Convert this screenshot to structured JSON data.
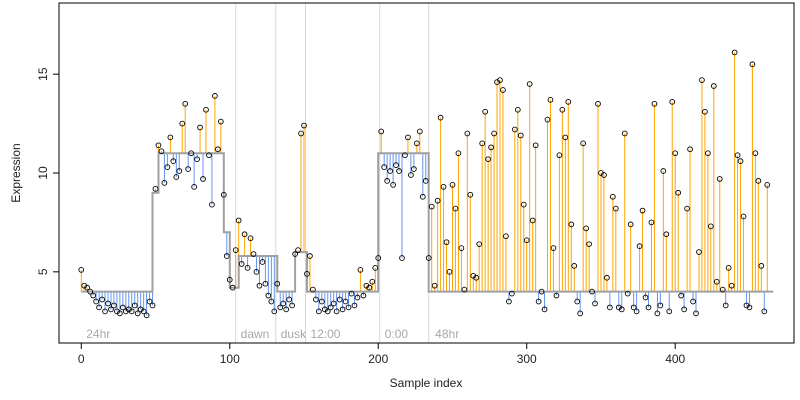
{
  "chart_data": {
    "type": "scatter",
    "title": "",
    "xlabel": "Sample index",
    "ylabel": "Expression",
    "xlim": [
      -15,
      480
    ],
    "ylim": [
      1.4,
      18.6
    ],
    "x_ticks": [
      0,
      100,
      200,
      300,
      400
    ],
    "y_ticks": [
      5,
      10,
      15
    ],
    "grid": false,
    "legend": "none",
    "colors": {
      "above_fit": "#FFA500",
      "below_fit": "#6495ED",
      "fit_line": "#A0A0A0",
      "point_stroke": "#000000",
      "separator": "#D8D8D8"
    },
    "separators": [
      104,
      131,
      151,
      201,
      234
    ],
    "annotations": [
      {
        "x": 2,
        "label": "24hr"
      },
      {
        "x": 106,
        "label": "dawn"
      },
      {
        "x": 133,
        "label": "dusk"
      },
      {
        "x": 153,
        "label": "12:00"
      },
      {
        "x": 203,
        "label": "0:00"
      },
      {
        "x": 237,
        "label": "48hr"
      }
    ],
    "fitted_levels": [
      {
        "x_start": 0,
        "x_end": 48,
        "value": 4.0
      },
      {
        "x_start": 48,
        "x_end": 52,
        "value": 9.0
      },
      {
        "x_start": 52,
        "x_end": 96,
        "value": 11.0
      },
      {
        "x_start": 96,
        "x_end": 100,
        "value": 7.0
      },
      {
        "x_start": 100,
        "x_end": 106,
        "value": 4.2
      },
      {
        "x_start": 106,
        "x_end": 132,
        "value": 5.8
      },
      {
        "x_start": 132,
        "x_end": 144,
        "value": 4.0
      },
      {
        "x_start": 144,
        "x_end": 152,
        "value": 6.0
      },
      {
        "x_start": 152,
        "x_end": 200,
        "value": 4.0
      },
      {
        "x_start": 200,
        "x_end": 234,
        "value": 11.0
      },
      {
        "x_start": 234,
        "x_end": 466,
        "value": 4.0
      }
    ],
    "points": [
      [
        0,
        5.1
      ],
      [
        2,
        4.3
      ],
      [
        4,
        4.2
      ],
      [
        6,
        4.0
      ],
      [
        8,
        3.8
      ],
      [
        10,
        3.5
      ],
      [
        12,
        3.2
      ],
      [
        14,
        3.6
      ],
      [
        16,
        3.0
      ],
      [
        18,
        3.4
      ],
      [
        20,
        3.1
      ],
      [
        22,
        3.3
      ],
      [
        24,
        3.0
      ],
      [
        26,
        2.9
      ],
      [
        28,
        3.2
      ],
      [
        30,
        3.0
      ],
      [
        32,
        3.1
      ],
      [
        34,
        3.0
      ],
      [
        36,
        3.3
      ],
      [
        38,
        2.9
      ],
      [
        40,
        3.1
      ],
      [
        42,
        3.0
      ],
      [
        44,
        2.8
      ],
      [
        46,
        3.5
      ],
      [
        48,
        3.3
      ],
      [
        50,
        9.2
      ],
      [
        52,
        11.4
      ],
      [
        54,
        11.1
      ],
      [
        56,
        9.5
      ],
      [
        58,
        10.3
      ],
      [
        60,
        11.8
      ],
      [
        62,
        10.6
      ],
      [
        64,
        9.8
      ],
      [
        66,
        10.1
      ],
      [
        68,
        12.5
      ],
      [
        70,
        13.5
      ],
      [
        72,
        10.2
      ],
      [
        74,
        11.0
      ],
      [
        76,
        9.3
      ],
      [
        78,
        10.7
      ],
      [
        80,
        12.3
      ],
      [
        82,
        9.7
      ],
      [
        84,
        13.2
      ],
      [
        86,
        10.9
      ],
      [
        88,
        8.4
      ],
      [
        90,
        13.9
      ],
      [
        92,
        11.2
      ],
      [
        94,
        12.6
      ],
      [
        96,
        8.9
      ],
      [
        98,
        5.8
      ],
      [
        100,
        4.6
      ],
      [
        102,
        4.2
      ],
      [
        104,
        6.1
      ],
      [
        106,
        7.6
      ],
      [
        108,
        5.4
      ],
      [
        110,
        6.9
      ],
      [
        112,
        5.2
      ],
      [
        114,
        6.7
      ],
      [
        116,
        5.9
      ],
      [
        118,
        5.0
      ],
      [
        120,
        4.3
      ],
      [
        122,
        5.5
      ],
      [
        124,
        4.4
      ],
      [
        126,
        3.8
      ],
      [
        128,
        3.5
      ],
      [
        130,
        3.0
      ],
      [
        132,
        4.4
      ],
      [
        134,
        3.2
      ],
      [
        136,
        3.4
      ],
      [
        138,
        3.1
      ],
      [
        140,
        3.6
      ],
      [
        142,
        3.3
      ],
      [
        144,
        5.9
      ],
      [
        146,
        6.1
      ],
      [
        148,
        12.0
      ],
      [
        150,
        12.4
      ],
      [
        152,
        4.9
      ],
      [
        154,
        5.8
      ],
      [
        156,
        4.1
      ],
      [
        158,
        3.6
      ],
      [
        160,
        3.0
      ],
      [
        162,
        3.5
      ],
      [
        164,
        3.1
      ],
      [
        166,
        3.0
      ],
      [
        168,
        3.2
      ],
      [
        170,
        3.4
      ],
      [
        172,
        3.0
      ],
      [
        174,
        3.6
      ],
      [
        176,
        3.1
      ],
      [
        178,
        3.5
      ],
      [
        180,
        3.2
      ],
      [
        182,
        3.9
      ],
      [
        184,
        3.3
      ],
      [
        186,
        3.7
      ],
      [
        188,
        5.1
      ],
      [
        190,
        3.8
      ],
      [
        192,
        4.3
      ],
      [
        194,
        4.2
      ],
      [
        196,
        4.5
      ],
      [
        198,
        5.2
      ],
      [
        200,
        5.7
      ],
      [
        202,
        12.1
      ],
      [
        204,
        10.3
      ],
      [
        206,
        9.6
      ],
      [
        208,
        10.1
      ],
      [
        210,
        9.4
      ],
      [
        212,
        10.4
      ],
      [
        214,
        10.1
      ],
      [
        216,
        5.7
      ],
      [
        218,
        10.9
      ],
      [
        220,
        11.8
      ],
      [
        222,
        9.9
      ],
      [
        224,
        10.2
      ],
      [
        226,
        11.5
      ],
      [
        228,
        12.1
      ],
      [
        230,
        8.8
      ],
      [
        232,
        9.6
      ],
      [
        234,
        5.7
      ],
      [
        236,
        8.3
      ],
      [
        238,
        4.3
      ],
      [
        240,
        8.6
      ],
      [
        242,
        12.8
      ],
      [
        244,
        9.3
      ],
      [
        246,
        6.5
      ],
      [
        248,
        5.0
      ],
      [
        250,
        9.4
      ],
      [
        252,
        8.2
      ],
      [
        254,
        11.0
      ],
      [
        256,
        6.2
      ],
      [
        258,
        4.1
      ],
      [
        260,
        12.0
      ],
      [
        262,
        8.9
      ],
      [
        264,
        4.8
      ],
      [
        266,
        4.7
      ],
      [
        268,
        6.4
      ],
      [
        270,
        11.5
      ],
      [
        272,
        13.1
      ],
      [
        274,
        10.7
      ],
      [
        276,
        11.3
      ],
      [
        278,
        12.0
      ],
      [
        280,
        14.6
      ],
      [
        282,
        14.7
      ],
      [
        284,
        14.2
      ],
      [
        286,
        6.8
      ],
      [
        288,
        3.5
      ],
      [
        290,
        3.9
      ],
      [
        292,
        12.2
      ],
      [
        294,
        13.2
      ],
      [
        296,
        11.9
      ],
      [
        298,
        8.4
      ],
      [
        300,
        6.6
      ],
      [
        302,
        14.5
      ],
      [
        304,
        7.6
      ],
      [
        306,
        11.4
      ],
      [
        308,
        3.5
      ],
      [
        310,
        4.0
      ],
      [
        312,
        3.1
      ],
      [
        314,
        12.7
      ],
      [
        316,
        13.7
      ],
      [
        318,
        6.2
      ],
      [
        320,
        3.8
      ],
      [
        322,
        10.9
      ],
      [
        324,
        13.2
      ],
      [
        326,
        11.8
      ],
      [
        328,
        13.6
      ],
      [
        330,
        7.4
      ],
      [
        332,
        5.3
      ],
      [
        334,
        3.5
      ],
      [
        336,
        2.9
      ],
      [
        338,
        11.5
      ],
      [
        340,
        7.2
      ],
      [
        342,
        6.4
      ],
      [
        344,
        4.0
      ],
      [
        346,
        3.4
      ],
      [
        348,
        13.5
      ],
      [
        350,
        10.0
      ],
      [
        352,
        9.9
      ],
      [
        354,
        4.7
      ],
      [
        356,
        3.2
      ],
      [
        358,
        8.8
      ],
      [
        360,
        8.2
      ],
      [
        362,
        3.2
      ],
      [
        364,
        3.1
      ],
      [
        366,
        12.0
      ],
      [
        368,
        3.9
      ],
      [
        370,
        7.4
      ],
      [
        372,
        3.2
      ],
      [
        374,
        3.0
      ],
      [
        376,
        6.3
      ],
      [
        378,
        8.1
      ],
      [
        380,
        3.7
      ],
      [
        382,
        3.2
      ],
      [
        384,
        7.5
      ],
      [
        386,
        13.5
      ],
      [
        388,
        2.9
      ],
      [
        390,
        3.3
      ],
      [
        392,
        10.1
      ],
      [
        394,
        6.9
      ],
      [
        396,
        3.0
      ],
      [
        398,
        13.6
      ],
      [
        400,
        11.0
      ],
      [
        402,
        9.0
      ],
      [
        404,
        3.8
      ],
      [
        406,
        3.1
      ],
      [
        408,
        8.2
      ],
      [
        410,
        11.2
      ],
      [
        412,
        3.5
      ],
      [
        414,
        2.9
      ],
      [
        416,
        6.0
      ],
      [
        418,
        14.7
      ],
      [
        420,
        13.1
      ],
      [
        422,
        11.0
      ],
      [
        424,
        7.3
      ],
      [
        426,
        14.4
      ],
      [
        428,
        4.5
      ],
      [
        430,
        9.7
      ],
      [
        432,
        4.1
      ],
      [
        434,
        3.3
      ],
      [
        436,
        5.2
      ],
      [
        438,
        4.3
      ],
      [
        440,
        16.1
      ],
      [
        442,
        10.9
      ],
      [
        444,
        10.6
      ],
      [
        446,
        7.8
      ],
      [
        448,
        3.3
      ],
      [
        450,
        3.2
      ],
      [
        452,
        15.5
      ],
      [
        454,
        11.0
      ],
      [
        456,
        9.6
      ],
      [
        458,
        5.3
      ],
      [
        460,
        3.0
      ],
      [
        462,
        9.4
      ]
    ]
  }
}
